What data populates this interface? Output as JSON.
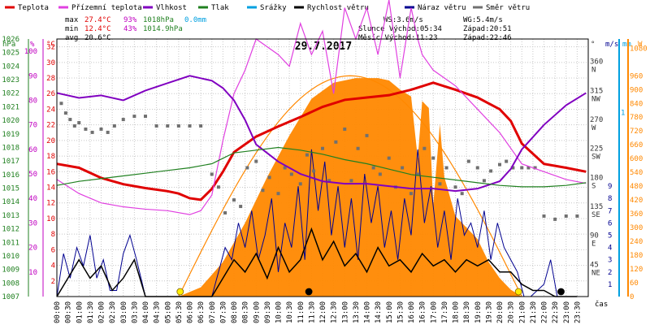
{
  "colors": {
    "teplota": "#e00000",
    "pocitova": "#e040e0",
    "vlhkost": "#8000c0",
    "tlak": "#208020",
    "srazky": "#00a0e0",
    "rychlost": "#000000",
    "naraz": "#000090",
    "smer": "#707070",
    "slunce": "#ff8800",
    "tlak_axis": "#208020",
    "vlhkost_axis": "#c000c0",
    "teplota_axis": "#e00000",
    "grid": "#c8c8c8"
  },
  "legend": [
    {
      "label": "Teplota",
      "color_key": "teplota"
    },
    {
      "label": "Přízemní teplota",
      "color_key": "pocitova"
    },
    {
      "label": "Vlhkost",
      "color_key": "vlhkost"
    },
    {
      "label": "Tlak",
      "color_key": "tlak"
    },
    {
      "label": "Srážky",
      "color_key": "srazky"
    },
    {
      "label": "Rychlost větru",
      "color_key": "rychlost"
    },
    {
      "label": "Náraz větru",
      "color_key": "naraz"
    },
    {
      "label": "Směr větru",
      "color_key": "smer"
    }
  ],
  "stats": {
    "max_label": "max",
    "max_temp": "27.4°C",
    "max_hum": "93%",
    "max_press": "1018hPa",
    "max_rain": "0.0mm",
    "min_label": "min",
    "min_temp": "12.4°C",
    "min_hum": "43%",
    "min_press": "1014.9hPa",
    "avg_label": "avg",
    "avg_temp": "20.6°C"
  },
  "info": {
    "ws": "WS:3.6m/s",
    "wg": "WG:5.4m/s",
    "slunce": "Slunce Východ:05:34",
    "slunce_zapad": "Západ:20:51",
    "mesic": "Měsíc  Východ:11:23",
    "mesic_zapad": "Západ:22:46"
  },
  "axis_units": {
    "hpa": "hPa",
    "pct": "%",
    "c": "°C",
    "deg": "°",
    "ms": "m/s",
    "mm": "mm",
    "w": "W",
    "cas": "čas"
  },
  "chart_data": {
    "type": "line",
    "title": "29.7.2017",
    "x_unit": "hours",
    "x_ticks": [
      "00:00",
      "00:30",
      "01:00",
      "01:30",
      "02:00",
      "02:30",
      "03:00",
      "03:30",
      "04:00",
      "04:30",
      "05:00",
      "05:30",
      "06:00",
      "06:30",
      "07:00",
      "07:30",
      "08:00",
      "08:30",
      "09:00",
      "09:30",
      "10:00",
      "10:30",
      "11:00",
      "11:30",
      "12:00",
      "12:30",
      "13:00",
      "13:30",
      "14:00",
      "14:30",
      "15:00",
      "15:30",
      "16:00",
      "16:30",
      "17:00",
      "17:30",
      "18:00",
      "18:30",
      "19:00",
      "19:30",
      "20:00",
      "20:30",
      "21:00",
      "21:30",
      "22:00",
      "22:30",
      "23:00",
      "23:30"
    ],
    "axes": {
      "pressure_hPa": {
        "ticks": [
          "1007",
          "1008",
          "1009",
          "1010",
          "1011",
          "1012",
          "1013",
          "1014",
          "1015",
          "1016",
          "1017",
          "1018",
          "1019",
          "1020",
          "1021",
          "1022",
          "1023",
          "1024",
          "1025",
          "1026"
        ],
        "range": [
          1007,
          1026
        ]
      },
      "humidity_pct": {
        "ticks": [
          "10",
          "20",
          "30",
          "40",
          "50",
          "60",
          "70",
          "80",
          "90",
          "100"
        ],
        "range": [
          0,
          105
        ]
      },
      "temperature_C": {
        "ticks": [
          "2",
          "4",
          "6",
          "8",
          "10",
          "12",
          "14",
          "16",
          "18",
          "20",
          "22",
          "24",
          "26",
          "28",
          "30",
          "32"
        ],
        "range": [
          0,
          33
        ]
      },
      "direction_deg": {
        "ticks": [
          "45",
          "90",
          "135",
          "180",
          "225",
          "270",
          "315",
          "360"
        ],
        "labels": [
          "NE",
          "E",
          "SE",
          "S",
          "SW",
          "W",
          "NW",
          "N"
        ],
        "range": [
          0,
          400
        ]
      },
      "wind_ms": {
        "ticks": [
          "1",
          "2",
          "3",
          "4",
          "5",
          "6",
          "7",
          "8",
          "9"
        ],
        "range": [
          0,
          21
        ]
      },
      "rain_mm": {
        "ticks": [
          "1"
        ],
        "range": [
          0,
          1.4
        ]
      },
      "solar_W": {
        "ticks": [
          "0",
          "60",
          "120",
          "180",
          "240",
          "300",
          "360",
          "420",
          "480",
          "540",
          "600",
          "660",
          "720",
          "780",
          "840",
          "900",
          "960",
          "1080"
        ],
        "range": [
          0,
          1120
        ]
      }
    },
    "series": [
      {
        "name": "Teplota",
        "axis": "temperature_C",
        "color_key": "teplota",
        "x": [
          0,
          1,
          2,
          3,
          4,
          5,
          5.5,
          6,
          6.5,
          7,
          7.5,
          8,
          9,
          10,
          11,
          12,
          13,
          14,
          15,
          16,
          17,
          18,
          19,
          20,
          20.5,
          21,
          22,
          23,
          23.9
        ],
        "y": [
          17.0,
          16.5,
          15.2,
          14.4,
          13.9,
          13.5,
          13.2,
          12.6,
          12.4,
          13.8,
          16,
          18.5,
          20.5,
          21.8,
          23,
          24.3,
          25.2,
          25.5,
          25.8,
          26.5,
          27.4,
          26.5,
          25.5,
          24,
          22.5,
          19.6,
          17,
          16.5,
          16.0
        ]
      },
      {
        "name": "Přízemní teplota",
        "axis": "temperature_C",
        "color_key": "pocitova",
        "x": [
          0,
          1,
          2,
          3,
          4,
          5,
          6,
          6.5,
          7,
          7.5,
          8,
          8.5,
          9,
          10,
          10.5,
          11,
          11.5,
          12,
          12.5,
          13,
          13.5,
          14,
          14.5,
          15,
          15.5,
          16,
          16.3,
          16.5,
          17,
          17.5,
          18,
          19,
          20,
          21,
          22,
          23,
          23.9
        ],
        "y": [
          15.0,
          13.2,
          12.0,
          11.5,
          11.2,
          11.0,
          10.5,
          11,
          13,
          20,
          26,
          29,
          33,
          31,
          29.5,
          35,
          31,
          34,
          26,
          37,
          33,
          37,
          31,
          38,
          28,
          37,
          33,
          31,
          29,
          28,
          27,
          24,
          21,
          17,
          16,
          15,
          14.5
        ]
      },
      {
        "name": "Vlhkost",
        "axis": "humidity_pct",
        "color_key": "vlhkost",
        "x": [
          0,
          1,
          2,
          3,
          4,
          5,
          6,
          6.5,
          7,
          7.5,
          8,
          8.5,
          9,
          10,
          11,
          12,
          13,
          14,
          15,
          16,
          17,
          18,
          19,
          20,
          20.5,
          21,
          22,
          23,
          23.9
        ],
        "y": [
          83,
          81,
          82,
          80,
          84,
          87,
          90,
          89,
          88,
          85,
          80,
          72,
          62,
          55,
          50,
          47,
          46,
          46,
          45,
          44,
          44,
          43,
          44,
          47,
          52,
          60,
          70,
          78,
          83
        ]
      },
      {
        "name": "Tlak",
        "axis": "pressure_hPa",
        "color_key": "tlak",
        "x": [
          0,
          1,
          2,
          3,
          4,
          5,
          6,
          7,
          7.5,
          8,
          9,
          10,
          11,
          12,
          13,
          14,
          15,
          16,
          17,
          18,
          19,
          20,
          21,
          22,
          23,
          23.9
        ],
        "y": [
          1015.2,
          1015.5,
          1015.7,
          1015.9,
          1016.1,
          1016.3,
          1016.5,
          1016.8,
          1017.2,
          1017.6,
          1017.8,
          1018.0,
          1017.8,
          1017.5,
          1017.1,
          1016.8,
          1016.4,
          1016.0,
          1015.8,
          1015.6,
          1015.4,
          1015.2,
          1015.1,
          1015.1,
          1015.2,
          1015.4
        ]
      },
      {
        "name": "Směr větru",
        "axis": "direction_deg",
        "color_key": "smer",
        "x": [
          0.2,
          0.4,
          0.6,
          0.8,
          1,
          1.3,
          1.6,
          2,
          2.3,
          2.6,
          3,
          3.5,
          4,
          4.5,
          5,
          5.5,
          6,
          6.5,
          7,
          7.3,
          7.6,
          8,
          8.3,
          8.6,
          9,
          9.3,
          9.6,
          10,
          10.3,
          10.6,
          11,
          11.3,
          11.6,
          12,
          12.3,
          12.6,
          13,
          13.3,
          13.6,
          14,
          14.3,
          14.6,
          15,
          15.3,
          15.6,
          16,
          16.3,
          16.6,
          17,
          17.3,
          17.6,
          18,
          18.3,
          18.6,
          19,
          19.3,
          19.6,
          20,
          20.3,
          20.6,
          21,
          21.3,
          21.6,
          22,
          22.5,
          23,
          23.5
        ],
        "y": [
          300,
          285,
          275,
          265,
          270,
          260,
          255,
          260,
          255,
          265,
          275,
          280,
          280,
          265,
          265,
          265,
          265,
          265,
          190,
          170,
          130,
          150,
          140,
          200,
          210,
          165,
          185,
          160,
          200,
          190,
          175,
          220,
          195,
          230,
          180,
          240,
          260,
          180,
          230,
          250,
          200,
          190,
          215,
          170,
          200,
          160,
          190,
          230,
          215,
          175,
          200,
          170,
          160,
          210,
          200,
          180,
          195,
          205,
          210,
          200,
          200,
          200,
          200,
          125,
          120,
          125,
          125
        ]
      }
    ],
    "wind": {
      "unit": "m/s",
      "gust_x": [
        0,
        0.3,
        0.6,
        0.9,
        1.2,
        1.5,
        1.8,
        2.1,
        2.4,
        2.7,
        3.0,
        3.3,
        3.6,
        4,
        5,
        6,
        7,
        7.3,
        7.6,
        7.9,
        8.2,
        8.5,
        8.8,
        9.1,
        9.4,
        9.7,
        10,
        10.3,
        10.6,
        10.9,
        11.2,
        11.5,
        11.8,
        12.1,
        12.4,
        12.7,
        13,
        13.3,
        13.6,
        13.9,
        14.2,
        14.5,
        14.8,
        15.1,
        15.4,
        15.7,
        16,
        16.3,
        16.6,
        16.9,
        17.2,
        17.5,
        17.8,
        18.1,
        18.4,
        18.7,
        19,
        19.3,
        19.6,
        19.9,
        20.2,
        20.5,
        20.8,
        21.1,
        21.4,
        22,
        22.3,
        22.6,
        23,
        23.5
      ],
      "gust_y": [
        0,
        3.5,
        1.5,
        4,
        2.5,
        5,
        1.5,
        3,
        0.5,
        0.5,
        3.5,
        5,
        3,
        0,
        0,
        0,
        0,
        2,
        4,
        3,
        6,
        4,
        7,
        3,
        5,
        8,
        2,
        6,
        4,
        9,
        3,
        12,
        7,
        11,
        5,
        9,
        4,
        8,
        3,
        10,
        6,
        9,
        4,
        7,
        3,
        8,
        5,
        12,
        6,
        9,
        4,
        7,
        3,
        8,
        5,
        6,
        4,
        7,
        3,
        6,
        4,
        3,
        2,
        0,
        0,
        1,
        3,
        0,
        0,
        0
      ],
      "speed_x": [
        0,
        0.5,
        1,
        1.5,
        2,
        2.5,
        3,
        3.5,
        4,
        5,
        6,
        7,
        7.5,
        8,
        8.5,
        9,
        9.5,
        10,
        10.5,
        11,
        11.5,
        12,
        12.5,
        13,
        13.5,
        14,
        14.5,
        15,
        15.5,
        16,
        16.5,
        17,
        17.5,
        18,
        18.5,
        19,
        19.5,
        20,
        20.5,
        21,
        21.5,
        22,
        22.5,
        23,
        23.5
      ],
      "speed_y": [
        0,
        1.5,
        3,
        1.5,
        2.5,
        0.5,
        1.5,
        3,
        0,
        0,
        0,
        0,
        1.5,
        3,
        2,
        3.5,
        1.5,
        4,
        2,
        3,
        5.5,
        3,
        4.5,
        2.5,
        3.5,
        2,
        4,
        2.5,
        3,
        2,
        3.5,
        2.5,
        3,
        2,
        3,
        2.5,
        3,
        2,
        2,
        1,
        0.5,
        0.5,
        0,
        0,
        0
      ]
    },
    "solar": {
      "unit": "W",
      "x": [
        5.5,
        6.5,
        7.5,
        8.5,
        9.5,
        10.5,
        11.5,
        12.5,
        13.5,
        14,
        14.5,
        15,
        15.5,
        16,
        16.3,
        16.5,
        16.8,
        17,
        17.3,
        17.5,
        18,
        18.5,
        19,
        19.5,
        20,
        20.5,
        21
      ],
      "y": [
        0,
        40,
        150,
        320,
        520,
        700,
        860,
        930,
        950,
        950,
        950,
        940,
        900,
        870,
        600,
        850,
        820,
        400,
        750,
        520,
        350,
        300,
        250,
        150,
        80,
        30,
        0
      ]
    },
    "sun_markers_h": [
      5.57,
      20.85
    ],
    "moon_markers_h": [
      11.38,
      22.77
    ]
  }
}
